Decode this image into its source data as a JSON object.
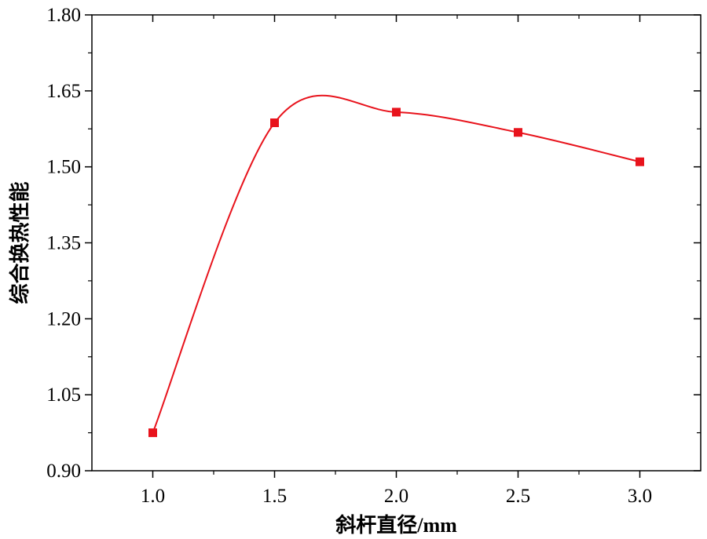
{
  "chart_data": {
    "type": "line",
    "title": "",
    "xlabel": "斜杆直径/mm",
    "ylabel": "综合换热性能",
    "x": [
      1.0,
      1.5,
      2.0,
      2.5,
      3.0
    ],
    "series": [
      {
        "values": [
          0.975,
          1.587,
          1.608,
          1.568,
          1.51
        ],
        "color": "#e8131c",
        "marker": "square",
        "smooth": true
      }
    ],
    "xlim": [
      0.75,
      3.25
    ],
    "ylim": [
      0.9,
      1.8
    ],
    "xticks": [
      1.0,
      1.5,
      2.0,
      2.5,
      3.0
    ],
    "xtick_labels": [
      "1.0",
      "1.5",
      "2.0",
      "2.5",
      "3.0"
    ],
    "yticks": [
      0.9,
      1.05,
      1.2,
      1.35,
      1.5,
      1.65,
      1.8
    ],
    "ytick_labels": [
      "0.90",
      "1.05",
      "1.20",
      "1.35",
      "1.50",
      "1.65",
      "1.80"
    ],
    "grid": false,
    "legend": "none"
  }
}
